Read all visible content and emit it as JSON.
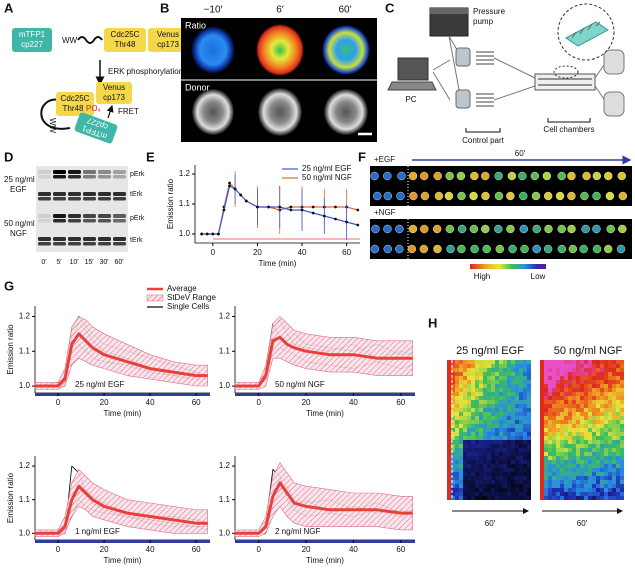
{
  "panel_labels": [
    "A",
    "B",
    "C",
    "D",
    "E",
    "F",
    "G",
    "H"
  ],
  "panel_a": {
    "donor": [
      "mTFP1",
      "cp227"
    ],
    "linker": "WW",
    "substrate": [
      "Cdc25C",
      "Thr48"
    ],
    "acceptor": [
      "Venus",
      "cp173"
    ],
    "step": "ERK phosphorylation",
    "phospho": "PO₄",
    "fret": "FRET"
  },
  "panel_b": {
    "columns": [
      "−10′",
      "6′",
      "60′"
    ],
    "rows": [
      "Ratio",
      "Donor"
    ]
  },
  "panel_c": {
    "pump": [
      "Pressure",
      "pump"
    ],
    "pc": "PC",
    "control": "Control part",
    "chambers": "Cell chambers"
  },
  "panel_d": {
    "conditions": [
      [
        "25 ng/ml",
        "EGF"
      ],
      [
        "50 ng/ml",
        "NGF"
      ]
    ],
    "bands": [
      "pErk",
      "tErk",
      "pErk",
      "tErk"
    ],
    "lanes": [
      "0′",
      "5′",
      "10′",
      "15′",
      "30′",
      "60′"
    ]
  },
  "panel_f": {
    "egf": "+EGF",
    "ngf": "+NGF",
    "duration": "60′",
    "high": "High",
    "low": "Low"
  },
  "panel_h": {
    "columns": [
      "25 ng/ml EGF",
      "50 ng/ml NGF"
    ],
    "durations": [
      "60′",
      "60′"
    ]
  },
  "chart_data": [
    {
      "type": "line",
      "x": [
        -5,
        -2.5,
        0,
        2.5,
        5,
        7.5,
        10,
        12.5,
        15,
        20,
        25,
        30,
        35,
        40,
        45,
        50,
        55,
        60,
        65
      ],
      "xlim": [
        -8,
        66
      ],
      "ylim": [
        0.97,
        1.23
      ],
      "xticks": [
        0,
        20,
        40,
        60
      ],
      "yticks": [
        {
          "value": 1,
          "label": "1.0"
        },
        1.1,
        1.2
      ],
      "xlabel": "Time (min)",
      "ylabel": "Emission ratio",
      "legend": "upper right",
      "markers": true,
      "stimulus_color": "#f4a0a0",
      "series": [
        {
          "name": "25 ng/ml EGF",
          "color": "#3b5bd9",
          "values": [
            1.0,
            1.0,
            1.0,
            1.0,
            1.08,
            1.16,
            1.15,
            1.13,
            1.11,
            1.09,
            1.09,
            1.09,
            1.08,
            1.08,
            1.07,
            1.06,
            1.05,
            1.04,
            1.03
          ],
          "errors": [
            null,
            null,
            null,
            null,
            null,
            null,
            0.05,
            null,
            null,
            0.06,
            null,
            0.07,
            null,
            0.07,
            null,
            0.06,
            null,
            0.06,
            null
          ]
        },
        {
          "name": "50 ng/ml NGF",
          "color": "#e8683a",
          "values": [
            1.0,
            1.0,
            1.0,
            1.0,
            1.09,
            1.17,
            1.15,
            1.13,
            1.11,
            1.09,
            1.09,
            1.08,
            1.09,
            1.09,
            1.09,
            1.09,
            1.09,
            1.09,
            1.08
          ],
          "errors": [
            null,
            null,
            null,
            null,
            null,
            null,
            0.06,
            null,
            null,
            0.07,
            null,
            0.08,
            null,
            0.07,
            null,
            0.06,
            null,
            0.06,
            null
          ]
        }
      ]
    },
    {
      "type": "line",
      "annotation": "25 ng/ml EGF",
      "x": [
        -10,
        0,
        3,
        6,
        9,
        12,
        15,
        20,
        30,
        40,
        50,
        60,
        65
      ],
      "xlim": [
        -10,
        66
      ],
      "ylim": [
        0.98,
        1.23
      ],
      "xticks": [
        0,
        20,
        40,
        60
      ],
      "yticks": [
        {
          "value": 1,
          "label": "1.0"
        },
        1.1,
        1.2
      ],
      "xlabel": "Time (min)",
      "ylabel": "Emission ratio",
      "legend": "top",
      "stimulus_color": "#2f3e9e",
      "series": [
        {
          "name": "Average",
          "color": "#e8413c",
          "values": [
            1.0,
            1.0,
            1.02,
            1.12,
            1.15,
            1.13,
            1.11,
            1.09,
            1.07,
            1.05,
            1.04,
            1.03,
            1.03
          ]
        },
        {
          "name": "StDeV Range",
          "color": "#d9607a",
          "lower": [
            0.99,
            0.99,
            1.0,
            1.06,
            1.08,
            1.07,
            1.06,
            1.05,
            1.03,
            1.02,
            1.01,
            1.0,
            1.0
          ],
          "upper": [
            1.01,
            1.01,
            1.05,
            1.17,
            1.2,
            1.19,
            1.17,
            1.15,
            1.12,
            1.09,
            1.07,
            1.06,
            1.06
          ]
        },
        {
          "name": "Single Cells",
          "color": "#000000",
          "values": [
            1.0,
            1.0,
            1.0,
            1.14,
            1.18,
            1.16,
            1.13,
            1.1,
            1.08,
            1.05,
            1.03,
            1.02,
            1.02
          ]
        },
        {
          "color": "#000000",
          "values": [
            1.0,
            1.0,
            1.03,
            1.1,
            1.12,
            1.1,
            1.08,
            1.07,
            1.06,
            1.04,
            1.03,
            1.04,
            1.03
          ]
        },
        {
          "color": "#000000",
          "values": [
            1.0,
            1.01,
            1.02,
            1.16,
            1.2,
            1.17,
            1.15,
            1.12,
            1.1,
            1.08,
            1.06,
            1.04,
            1.03
          ]
        }
      ]
    },
    {
      "type": "line",
      "annotation": "50 ng/ml NGF",
      "x": [
        -10,
        0,
        3,
        6,
        9,
        12,
        15,
        20,
        30,
        40,
        50,
        60,
        65
      ],
      "xlim": [
        -10,
        66
      ],
      "ylim": [
        0.98,
        1.23
      ],
      "xticks": [
        0,
        20,
        40,
        60
      ],
      "yticks": [
        {
          "value": 1,
          "label": "1.0"
        },
        1.1,
        1.2
      ],
      "xlabel": "Time (min)",
      "stimulus_color": "#2f3e9e",
      "series": [
        {
          "color": "#e8413c",
          "values": [
            1.0,
            1.0,
            1.03,
            1.13,
            1.14,
            1.12,
            1.11,
            1.1,
            1.09,
            1.09,
            1.08,
            1.08,
            1.08
          ]
        },
        {
          "color": "#d9607a",
          "lower": [
            0.99,
            0.99,
            1.0,
            1.08,
            1.08,
            1.07,
            1.06,
            1.05,
            1.04,
            1.04,
            1.03,
            1.03,
            1.03
          ],
          "upper": [
            1.01,
            1.01,
            1.06,
            1.18,
            1.2,
            1.18,
            1.16,
            1.15,
            1.14,
            1.14,
            1.13,
            1.13,
            1.13
          ]
        },
        {
          "color": "#000000",
          "values": [
            1.0,
            1.0,
            1.04,
            1.16,
            1.19,
            1.15,
            1.12,
            1.11,
            1.1,
            1.12,
            1.08,
            1.1,
            1.09
          ]
        },
        {
          "color": "#000000",
          "values": [
            1.0,
            1.0,
            1.02,
            1.1,
            1.11,
            1.1,
            1.09,
            1.07,
            1.06,
            1.05,
            1.07,
            1.05,
            1.06
          ]
        },
        {
          "color": "#000000",
          "values": [
            1.0,
            1.0,
            1.05,
            1.18,
            1.14,
            1.13,
            1.15,
            1.12,
            1.11,
            1.1,
            1.12,
            1.09,
            1.11
          ]
        }
      ]
    },
    {
      "type": "line",
      "annotation": "1 ng/ml EGF",
      "x": [
        -10,
        0,
        3,
        6,
        9,
        12,
        15,
        20,
        30,
        40,
        50,
        60,
        65
      ],
      "xlim": [
        -10,
        66
      ],
      "ylim": [
        0.98,
        1.23
      ],
      "xticks": [
        0,
        20,
        40,
        60
      ],
      "yticks": [
        {
          "value": 1,
          "label": "1.0"
        },
        1.1,
        1.2
      ],
      "xlabel": "Time (min)",
      "ylabel": "Emission ratio",
      "stimulus_color": "#2f3e9e",
      "series": [
        {
          "color": "#e8413c",
          "values": [
            1.0,
            1.0,
            1.02,
            1.1,
            1.14,
            1.12,
            1.1,
            1.08,
            1.06,
            1.05,
            1.04,
            1.03,
            1.03
          ]
        },
        {
          "color": "#d9607a",
          "lower": [
            0.99,
            0.99,
            1.0,
            1.05,
            1.08,
            1.07,
            1.05,
            1.04,
            1.02,
            1.01,
            1.0,
            1.0,
            1.0
          ],
          "upper": [
            1.01,
            1.01,
            1.05,
            1.15,
            1.19,
            1.17,
            1.15,
            1.13,
            1.1,
            1.09,
            1.08,
            1.07,
            1.07
          ]
        },
        {
          "color": "#000000",
          "values": [
            1.0,
            1.0,
            1.0,
            1.2,
            1.18,
            1.12,
            1.09,
            1.07,
            1.05,
            1.04,
            1.03,
            1.02,
            1.02
          ]
        },
        {
          "color": "#000000",
          "values": [
            1.0,
            1.0,
            1.02,
            1.08,
            1.12,
            1.13,
            1.11,
            1.09,
            1.06,
            1.05,
            1.05,
            1.04,
            1.03
          ]
        },
        {
          "color": "#000000",
          "values": [
            1.0,
            1.0,
            1.01,
            1.05,
            1.1,
            1.08,
            1.07,
            1.06,
            1.05,
            1.03,
            1.02,
            1.02,
            1.01
          ]
        }
      ]
    },
    {
      "type": "line",
      "annotation": "2 ng/ml NGF",
      "x": [
        -10,
        0,
        3,
        6,
        9,
        12,
        15,
        20,
        30,
        40,
        50,
        60,
        65
      ],
      "xlim": [
        -10,
        66
      ],
      "ylim": [
        0.98,
        1.23
      ],
      "xticks": [
        0,
        20,
        40,
        60
      ],
      "yticks": [
        {
          "value": 1,
          "label": "1.0"
        },
        1.1,
        1.2
      ],
      "xlabel": "Time (min)",
      "stimulus_color": "#2f3e9e",
      "series": [
        {
          "color": "#e8413c",
          "values": [
            1.0,
            1.0,
            1.02,
            1.11,
            1.15,
            1.12,
            1.09,
            1.08,
            1.07,
            1.07,
            1.07,
            1.06,
            1.06
          ]
        },
        {
          "color": "#d9607a",
          "lower": [
            0.99,
            0.99,
            1.0,
            1.05,
            1.08,
            1.05,
            1.03,
            1.02,
            1.02,
            1.02,
            1.02,
            1.01,
            1.01
          ],
          "upper": [
            1.01,
            1.01,
            1.05,
            1.17,
            1.21,
            1.18,
            1.15,
            1.14,
            1.13,
            1.12,
            1.12,
            1.11,
            1.11
          ]
        },
        {
          "color": "#000000",
          "values": [
            1.0,
            1.0,
            1.03,
            1.19,
            1.17,
            1.1,
            1.07,
            1.05,
            1.06,
            1.08,
            1.06,
            1.07,
            1.05
          ]
        },
        {
          "color": "#000000",
          "values": [
            1.0,
            1.0,
            1.0,
            1.08,
            1.13,
            1.14,
            1.1,
            1.09,
            1.1,
            1.07,
            1.09,
            1.06,
            1.07
          ]
        },
        {
          "color": "#000000",
          "values": [
            1.0,
            1.0,
            1.02,
            1.12,
            1.16,
            1.12,
            1.08,
            1.1,
            1.06,
            1.05,
            1.07,
            1.05,
            1.06
          ]
        }
      ]
    }
  ]
}
